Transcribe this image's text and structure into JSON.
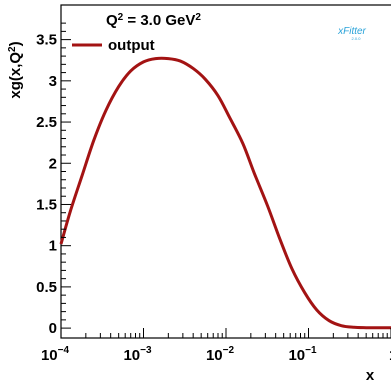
{
  "chart_data": {
    "type": "line",
    "xscale": "log",
    "xlim": [
      0.0001,
      1
    ],
    "ylim": [
      -0.12,
      3.92
    ],
    "xlabel": "x",
    "ylabel_main": "xg(x,Q",
    "ylabel_sup": "2",
    "ylabel_close": ")",
    "annotation": {
      "prefix": "Q",
      "sup1": "2",
      "middle": " = 3.0 GeV",
      "sup2": "2"
    },
    "x_tick_labels": [
      {
        "base": "10",
        "exp": "−4",
        "value": 0.0001
      },
      {
        "base": "10",
        "exp": "−3",
        "value": 0.001
      },
      {
        "base": "10",
        "exp": "−2",
        "value": 0.01
      },
      {
        "base": "10",
        "exp": "−1",
        "value": 0.1
      }
    ],
    "x_edge_label": "1",
    "y_ticks": [
      {
        "value": 0,
        "label": "0"
      },
      {
        "value": 0.5,
        "label": "0.5"
      },
      {
        "value": 1,
        "label": "1"
      },
      {
        "value": 1.5,
        "label": "1.5"
      },
      {
        "value": 2,
        "label": "2"
      },
      {
        "value": 2.5,
        "label": "2.5"
      },
      {
        "value": 3,
        "label": "3"
      },
      {
        "value": 3.5,
        "label": "3.5"
      }
    ],
    "series": [
      {
        "name": "output",
        "color": "#a31313",
        "x": [
          0.0001,
          0.00013,
          0.00018,
          0.00025,
          0.00035,
          0.0005,
          0.0007,
          0.001,
          0.0014,
          0.002,
          0.0028,
          0.004,
          0.0056,
          0.008,
          0.011,
          0.016,
          0.022,
          0.032,
          0.045,
          0.063,
          0.09,
          0.126,
          0.178,
          0.25,
          0.355,
          0.5,
          0.7,
          1.0
        ],
        "y": [
          1.02,
          1.42,
          1.85,
          2.28,
          2.64,
          2.93,
          3.12,
          3.23,
          3.27,
          3.27,
          3.24,
          3.15,
          3.02,
          2.82,
          2.56,
          2.24,
          1.88,
          1.48,
          1.08,
          0.72,
          0.43,
          0.22,
          0.09,
          0.03,
          0.01,
          0.005,
          0.004,
          0.004
        ]
      }
    ]
  },
  "logo": {
    "text": "xFitter",
    "sub": "2.0.0"
  }
}
